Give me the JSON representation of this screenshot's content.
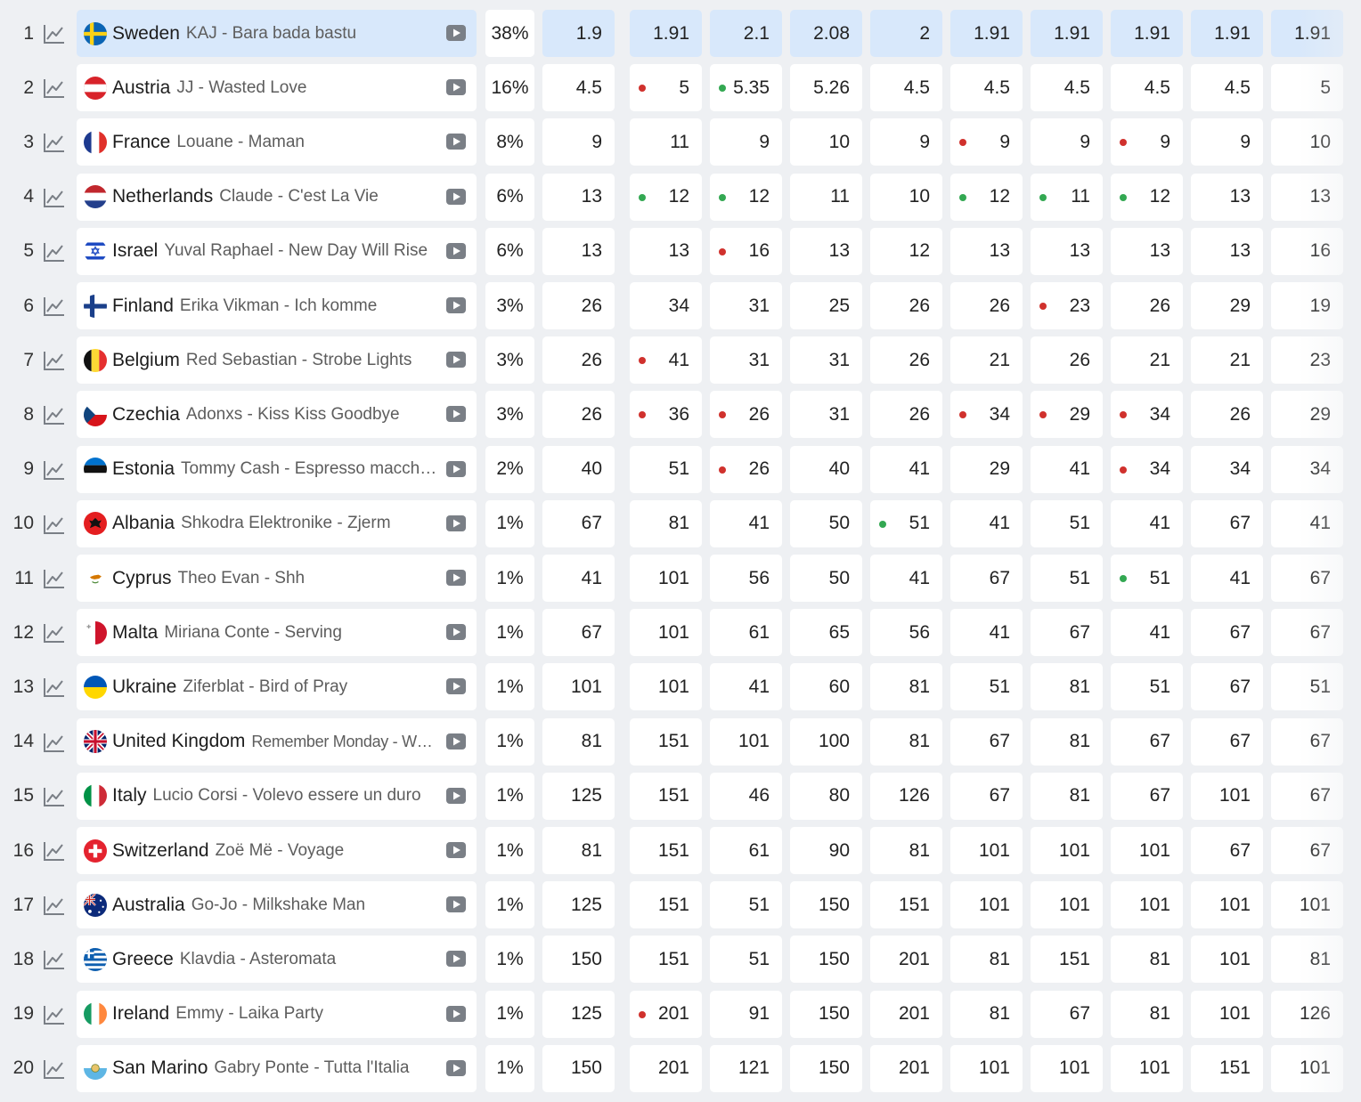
{
  "colors": {
    "highlight": "#d8e8fb",
    "dot_red": "#d0312d",
    "dot_green": "#33a852",
    "icon": "#7a7f86"
  },
  "icons": {
    "chart": "line-chart-icon",
    "video": "video-play-icon"
  },
  "rows": [
    {
      "rank": "1",
      "country": "Sweden",
      "song": "KAJ - Bara bada bastu",
      "pct": "38%",
      "highlight": true,
      "flag": "se",
      "odds": [
        "1.9",
        "1.91",
        "2.1",
        "2.08",
        "2",
        "1.91",
        "1.91",
        "1.91",
        "1.91",
        "1.91"
      ],
      "dots": [
        "",
        "",
        "",
        "",
        "",
        "",
        "",
        "",
        "",
        ""
      ]
    },
    {
      "rank": "2",
      "country": "Austria",
      "song": "JJ - Wasted Love",
      "pct": "16%",
      "flag": "at",
      "odds": [
        "4.5",
        "5",
        "5.35",
        "5.26",
        "4.5",
        "4.5",
        "4.5",
        "4.5",
        "4.5",
        "5"
      ],
      "dots": [
        "",
        "red",
        "green",
        "",
        "",
        "",
        "",
        "",
        "",
        ""
      ]
    },
    {
      "rank": "3",
      "country": "France",
      "song": "Louane - Maman",
      "pct": "8%",
      "flag": "fr",
      "odds": [
        "9",
        "11",
        "9",
        "10",
        "9",
        "9",
        "9",
        "9",
        "9",
        "10"
      ],
      "dots": [
        "",
        "",
        "",
        "",
        "",
        "red",
        "",
        "red",
        "",
        ""
      ]
    },
    {
      "rank": "4",
      "country": "Netherlands",
      "song": "Claude - C'est La Vie",
      "pct": "6%",
      "flag": "nl",
      "odds": [
        "13",
        "12",
        "12",
        "11",
        "10",
        "12",
        "11",
        "12",
        "13",
        "13"
      ],
      "dots": [
        "",
        "green",
        "green",
        "",
        "",
        "green",
        "green",
        "green",
        "",
        ""
      ]
    },
    {
      "rank": "5",
      "country": "Israel",
      "song": "Yuval Raphael - New Day Will Rise",
      "pct": "6%",
      "flag": "il",
      "odds": [
        "13",
        "13",
        "16",
        "13",
        "12",
        "13",
        "13",
        "13",
        "13",
        "16"
      ],
      "dots": [
        "",
        "",
        "red",
        "",
        "",
        "",
        "",
        "",
        "",
        ""
      ]
    },
    {
      "rank": "6",
      "country": "Finland",
      "song": "Erika Vikman - Ich komme",
      "pct": "3%",
      "flag": "fi",
      "odds": [
        "26",
        "34",
        "31",
        "25",
        "26",
        "26",
        "23",
        "26",
        "29",
        "19"
      ],
      "dots": [
        "",
        "",
        "",
        "",
        "",
        "",
        "red",
        "",
        "",
        ""
      ]
    },
    {
      "rank": "7",
      "country": "Belgium",
      "song": "Red Sebastian - Strobe Lights",
      "pct": "3%",
      "flag": "be",
      "odds": [
        "26",
        "41",
        "31",
        "31",
        "26",
        "21",
        "26",
        "21",
        "21",
        "23"
      ],
      "dots": [
        "",
        "red",
        "",
        "",
        "",
        "",
        "",
        "",
        "",
        ""
      ]
    },
    {
      "rank": "8",
      "country": "Czechia",
      "song": "Adonxs - Kiss Kiss Goodbye",
      "pct": "3%",
      "flag": "cz",
      "odds": [
        "26",
        "36",
        "26",
        "31",
        "26",
        "34",
        "29",
        "34",
        "26",
        "29"
      ],
      "dots": [
        "",
        "red",
        "red",
        "",
        "",
        "red",
        "red",
        "red",
        "",
        ""
      ]
    },
    {
      "rank": "9",
      "country": "Estonia",
      "song": "Tommy Cash - Espresso macchiato",
      "pct": "2%",
      "flag": "ee",
      "odds": [
        "40",
        "51",
        "26",
        "40",
        "41",
        "29",
        "41",
        "34",
        "34",
        "34"
      ],
      "dots": [
        "",
        "",
        "red",
        "",
        "",
        "",
        "",
        "red",
        "",
        ""
      ]
    },
    {
      "rank": "10",
      "country": "Albania",
      "song": "Shkodra Elektronike - Zjerm",
      "pct": "1%",
      "flag": "al",
      "odds": [
        "67",
        "81",
        "41",
        "50",
        "51",
        "41",
        "51",
        "41",
        "67",
        "41"
      ],
      "dots": [
        "",
        "",
        "",
        "",
        "green",
        "",
        "",
        "",
        "",
        ""
      ]
    },
    {
      "rank": "11",
      "country": "Cyprus",
      "song": "Theo Evan - Shh",
      "pct": "1%",
      "flag": "cy",
      "odds": [
        "41",
        "101",
        "56",
        "50",
        "41",
        "67",
        "51",
        "51",
        "41",
        "67"
      ],
      "dots": [
        "",
        "",
        "",
        "",
        "",
        "",
        "",
        "green",
        "",
        ""
      ]
    },
    {
      "rank": "12",
      "country": "Malta",
      "song": "Miriana Conte - Serving",
      "pct": "1%",
      "flag": "mt",
      "odds": [
        "67",
        "101",
        "61",
        "65",
        "56",
        "41",
        "67",
        "41",
        "67",
        "67"
      ],
      "dots": [
        "",
        "",
        "",
        "",
        "",
        "",
        "",
        "",
        "",
        ""
      ]
    },
    {
      "rank": "13",
      "country": "Ukraine",
      "song": "Ziferblat - Bird of Pray",
      "pct": "1%",
      "flag": "ua",
      "odds": [
        "101",
        "101",
        "41",
        "60",
        "81",
        "51",
        "81",
        "51",
        "67",
        "51"
      ],
      "dots": [
        "",
        "",
        "",
        "",
        "",
        "",
        "",
        "",
        "",
        ""
      ]
    },
    {
      "rank": "14",
      "country": "United Kingdom",
      "song": "Remember Monday - What The Hell Just Happened?",
      "pct": "1%",
      "flag": "gb",
      "song_small": true,
      "odds": [
        "81",
        "151",
        "101",
        "100",
        "81",
        "67",
        "81",
        "67",
        "67",
        "67"
      ],
      "dots": [
        "",
        "",
        "",
        "",
        "",
        "",
        "",
        "",
        "",
        ""
      ]
    },
    {
      "rank": "15",
      "country": "Italy",
      "song": "Lucio Corsi - Volevo essere un duro",
      "pct": "1%",
      "flag": "it",
      "odds": [
        "125",
        "151",
        "46",
        "80",
        "126",
        "67",
        "81",
        "67",
        "101",
        "67"
      ],
      "dots": [
        "",
        "",
        "",
        "",
        "",
        "",
        "",
        "",
        "",
        ""
      ]
    },
    {
      "rank": "16",
      "country": "Switzerland",
      "song": "Zoë Më - Voyage",
      "pct": "1%",
      "flag": "ch",
      "odds": [
        "81",
        "151",
        "61",
        "90",
        "81",
        "101",
        "101",
        "101",
        "67",
        "67"
      ],
      "dots": [
        "",
        "",
        "",
        "",
        "",
        "",
        "",
        "",
        "",
        ""
      ]
    },
    {
      "rank": "17",
      "country": "Australia",
      "song": "Go-Jo - Milkshake Man",
      "pct": "1%",
      "flag": "au",
      "odds": [
        "125",
        "151",
        "51",
        "150",
        "151",
        "101",
        "101",
        "101",
        "101",
        "101"
      ],
      "dots": [
        "",
        "",
        "",
        "",
        "",
        "",
        "",
        "",
        "",
        ""
      ]
    },
    {
      "rank": "18",
      "country": "Greece",
      "song": "Klavdia - Asteromata",
      "pct": "1%",
      "flag": "gr",
      "odds": [
        "150",
        "151",
        "51",
        "150",
        "201",
        "81",
        "151",
        "81",
        "101",
        "81"
      ],
      "dots": [
        "",
        "",
        "",
        "",
        "",
        "",
        "",
        "",
        "",
        ""
      ]
    },
    {
      "rank": "19",
      "country": "Ireland",
      "song": "Emmy - Laika Party",
      "pct": "1%",
      "flag": "ie",
      "odds": [
        "125",
        "201",
        "91",
        "150",
        "201",
        "81",
        "67",
        "81",
        "101",
        "126"
      ],
      "dots": [
        "",
        "red",
        "",
        "",
        "",
        "",
        "",
        "",
        "",
        ""
      ]
    },
    {
      "rank": "20",
      "country": "San Marino",
      "song": "Gabry Ponte - Tutta l'Italia",
      "pct": "1%",
      "flag": "sm",
      "odds": [
        "150",
        "201",
        "121",
        "150",
        "201",
        "101",
        "101",
        "101",
        "151",
        "101"
      ],
      "dots": [
        "",
        "",
        "",
        "",
        "",
        "",
        "",
        "",
        "",
        ""
      ]
    }
  ]
}
